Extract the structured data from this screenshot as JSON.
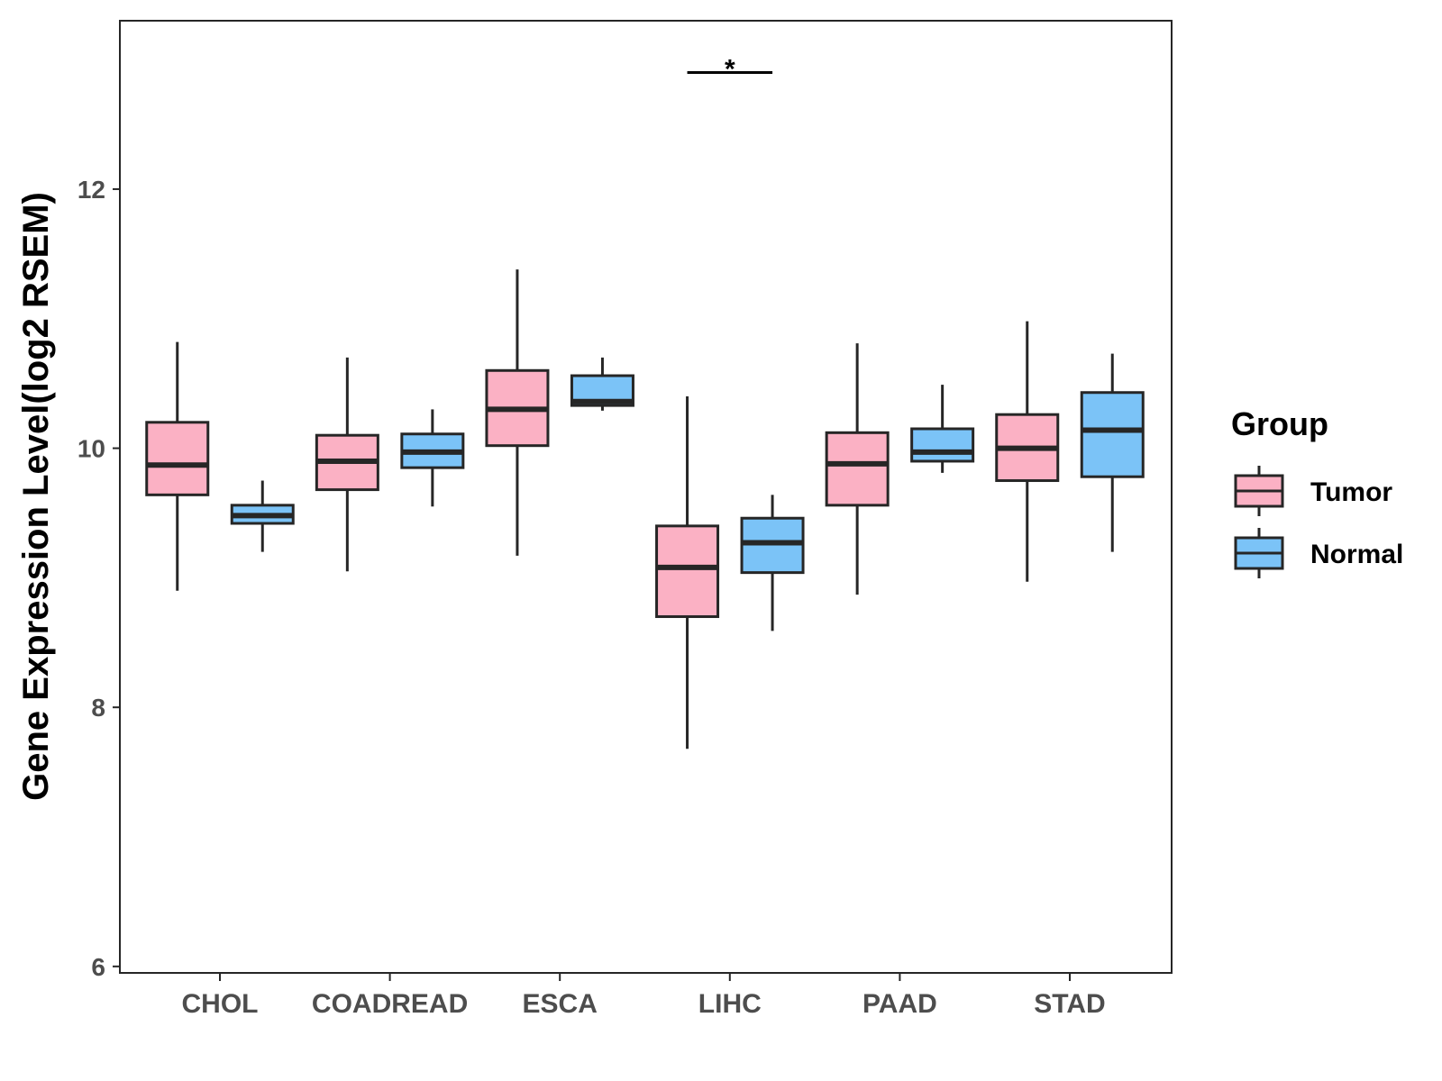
{
  "chart_data": {
    "type": "boxplot",
    "title": "",
    "xlabel": "",
    "ylabel": "Gene Expression Level(log2 RSEM)",
    "ylim": [
      5.95,
      13.3
    ],
    "yticks": [
      6,
      8,
      10,
      12
    ],
    "categories": [
      "CHOL",
      "COADREAD",
      "ESCA",
      "LIHC",
      "PAAD",
      "STAD"
    ],
    "legend": {
      "title": "Group",
      "position": "right",
      "entries": [
        {
          "name": "Tumor",
          "color": "#FBB1C4"
        },
        {
          "name": "Normal",
          "color": "#7BC3F7"
        }
      ]
    },
    "series": [
      {
        "name": "Tumor",
        "color": "#FBB1C4",
        "boxes": [
          {
            "category": "CHOL",
            "min": 8.9,
            "q1": 9.64,
            "median": 9.87,
            "q3": 10.2,
            "max": 10.82
          },
          {
            "category": "COADREAD",
            "min": 9.05,
            "q1": 9.68,
            "median": 9.9,
            "q3": 10.1,
            "max": 10.7
          },
          {
            "category": "ESCA",
            "min": 9.17,
            "q1": 10.02,
            "median": 10.3,
            "q3": 10.6,
            "max": 11.38
          },
          {
            "category": "LIHC",
            "min": 7.68,
            "q1": 8.7,
            "median": 9.08,
            "q3": 9.4,
            "max": 10.4
          },
          {
            "category": "PAAD",
            "min": 8.87,
            "q1": 9.56,
            "median": 9.88,
            "q3": 10.12,
            "max": 10.81
          },
          {
            "category": "STAD",
            "min": 8.97,
            "q1": 9.75,
            "median": 10.0,
            "q3": 10.26,
            "max": 10.98
          }
        ]
      },
      {
        "name": "Normal",
        "color": "#7BC3F7",
        "boxes": [
          {
            "category": "CHOL",
            "min": 9.2,
            "q1": 9.42,
            "median": 9.48,
            "q3": 9.56,
            "max": 9.75
          },
          {
            "category": "COADREAD",
            "min": 9.55,
            "q1": 9.85,
            "median": 9.97,
            "q3": 10.11,
            "max": 10.3
          },
          {
            "category": "ESCA",
            "min": 10.29,
            "q1": 10.33,
            "median": 10.36,
            "q3": 10.56,
            "max": 10.7
          },
          {
            "category": "LIHC",
            "min": 8.59,
            "q1": 9.04,
            "median": 9.27,
            "q3": 9.46,
            "max": 9.64
          },
          {
            "category": "PAAD",
            "min": 9.81,
            "q1": 9.9,
            "median": 9.97,
            "q3": 10.15,
            "max": 10.49
          },
          {
            "category": "STAD",
            "min": 9.2,
            "q1": 9.78,
            "median": 10.14,
            "q3": 10.43,
            "max": 10.73
          }
        ]
      }
    ],
    "annotations": [
      {
        "category": "LIHC",
        "text": "*",
        "y": 12.9
      }
    ]
  }
}
